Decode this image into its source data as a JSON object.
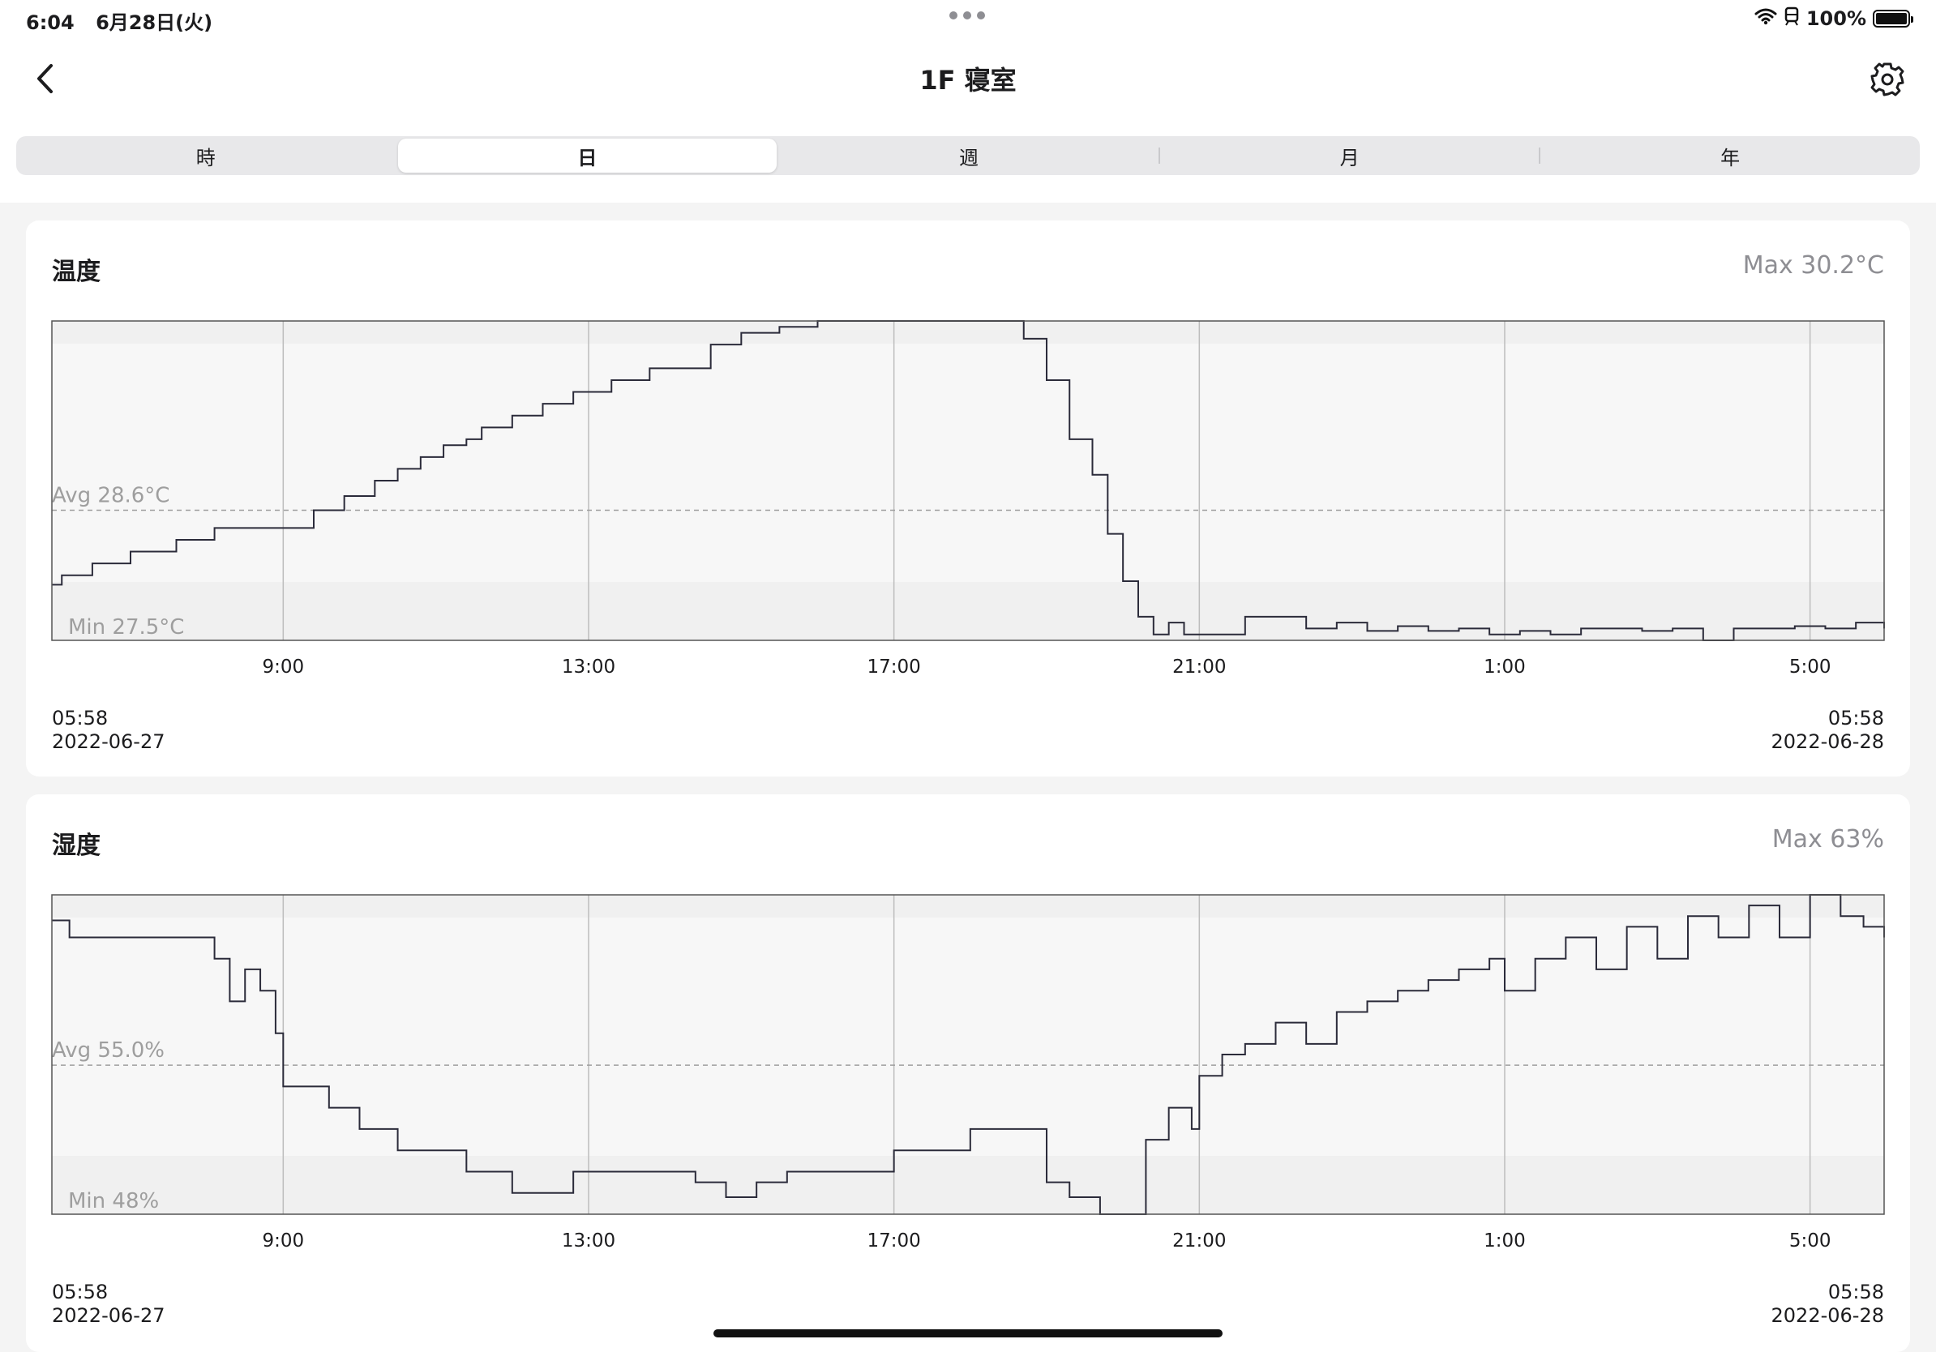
{
  "status_bar": {
    "time": "6:04",
    "date": "6月28日(火)",
    "battery": "100%",
    "battery_level": 1.0
  },
  "header": {
    "title": "1F 寝室"
  },
  "tabs": [
    {
      "label": "時",
      "active": false
    },
    {
      "label": "日",
      "active": true
    },
    {
      "label": "週",
      "active": false
    },
    {
      "label": "月",
      "active": false
    },
    {
      "label": "年",
      "active": false
    }
  ],
  "cards": {
    "temperature": {
      "title": "温度",
      "max_label": "Max 30.2°C",
      "avg_label": "Avg 28.6°C",
      "min_label": "Min 27.5°C",
      "start_time": "05:58",
      "start_date": "2022-06-27",
      "end_time": "05:58",
      "end_date": "2022-06-28"
    },
    "humidity": {
      "title": "湿度",
      "max_label": "Max 63%",
      "avg_label": "Avg 55.0%",
      "min_label": "Min 48%",
      "start_time": "05:58",
      "start_date": "2022-06-27",
      "end_time": "05:58",
      "end_date": "2022-06-28"
    }
  },
  "chart_data": [
    {
      "type": "line",
      "title": "温度",
      "unit": "°C",
      "x_ticks": [
        "9:00",
        "13:00",
        "17:00",
        "21:00",
        "1:00",
        "5:00"
      ],
      "x_tick_hours": [
        9,
        13,
        17,
        21,
        25,
        29
      ],
      "x_range": [
        5.97,
        29.97
      ],
      "ylim": [
        27.5,
        30.2
      ],
      "max": 30.2,
      "avg": 28.6,
      "min": 27.5,
      "grid": true,
      "x": [
        5.97,
        6.1,
        6.5,
        7.0,
        7.6,
        8.1,
        9.0,
        9.4,
        9.8,
        10.2,
        10.5,
        10.8,
        11.1,
        11.4,
        11.6,
        12.0,
        12.4,
        12.8,
        13.2,
        13.3,
        13.8,
        14.3,
        14.6,
        15.0,
        15.5,
        16.0,
        17.0,
        18.0,
        18.5,
        18.7,
        19.0,
        19.3,
        19.6,
        19.8,
        20.0,
        20.2,
        20.4,
        20.6,
        20.8,
        21.2,
        21.6,
        22.0,
        22.4,
        22.8,
        23.2,
        23.6,
        24.0,
        24.4,
        24.8,
        25.2,
        25.6,
        26.0,
        26.4,
        26.8,
        27.2,
        27.6,
        28.0,
        28.4,
        28.8,
        29.2,
        29.6,
        29.97
      ],
      "y": [
        27.97,
        28.05,
        28.15,
        28.25,
        28.35,
        28.45,
        28.45,
        28.6,
        28.72,
        28.85,
        28.95,
        29.05,
        29.15,
        29.2,
        29.3,
        29.4,
        29.5,
        29.6,
        29.6,
        29.7,
        29.8,
        29.8,
        30.0,
        30.1,
        30.15,
        30.2,
        30.2,
        30.2,
        30.2,
        30.05,
        29.7,
        29.2,
        28.9,
        28.4,
        28.0,
        27.7,
        27.55,
        27.65,
        27.55,
        27.55,
        27.7,
        27.7,
        27.6,
        27.65,
        27.58,
        27.62,
        27.58,
        27.6,
        27.55,
        27.58,
        27.55,
        27.6,
        27.6,
        27.58,
        27.6,
        27.5,
        27.6,
        27.6,
        27.62,
        27.6,
        27.65,
        27.6
      ]
    },
    {
      "type": "line",
      "title": "湿度",
      "unit": "%",
      "x_ticks": [
        "9:00",
        "13:00",
        "17:00",
        "21:00",
        "1:00",
        "5:00"
      ],
      "x_tick_hours": [
        9,
        13,
        17,
        21,
        25,
        29
      ],
      "x_range": [
        5.97,
        29.97
      ],
      "ylim": [
        48,
        63
      ],
      "max": 63,
      "avg": 55.0,
      "min": 48,
      "grid": true,
      "x": [
        5.97,
        6.2,
        7.0,
        7.6,
        8.1,
        8.3,
        8.5,
        8.7,
        8.9,
        9.0,
        9.2,
        9.6,
        10.0,
        10.3,
        10.5,
        10.8,
        11.4,
        12.0,
        12.8,
        13.3,
        14.0,
        14.4,
        14.8,
        15.2,
        15.6,
        16.0,
        17.0,
        17.5,
        18.0,
        18.5,
        19.0,
        19.3,
        19.7,
        20.0,
        20.3,
        20.6,
        20.9,
        21.0,
        21.3,
        21.6,
        22.0,
        22.4,
        22.8,
        23.2,
        23.6,
        24.0,
        24.4,
        24.8,
        25.0,
        25.4,
        25.8,
        26.2,
        26.6,
        27.0,
        27.4,
        27.8,
        28.2,
        28.6,
        29.0,
        29.4,
        29.7,
        29.97
      ],
      "y": [
        61.8,
        61.0,
        61.0,
        61.0,
        60.0,
        58.0,
        59.5,
        58.5,
        56.5,
        54.0,
        54.0,
        53.0,
        52.0,
        52.0,
        51.0,
        51.0,
        50.0,
        49.0,
        50.0,
        50.0,
        50.0,
        49.5,
        48.8,
        49.5,
        50.0,
        50.0,
        51.0,
        51.0,
        52.0,
        52.0,
        49.5,
        48.8,
        48.0,
        48.0,
        51.5,
        53.0,
        52.0,
        54.5,
        55.5,
        56.0,
        57.0,
        56.0,
        57.5,
        58.0,
        58.5,
        59.0,
        59.5,
        60.0,
        58.5,
        60.0,
        61.0,
        59.5,
        61.5,
        60.0,
        62.0,
        61.0,
        62.5,
        61.0,
        63.0,
        62.0,
        61.5,
        61.0
      ]
    }
  ]
}
